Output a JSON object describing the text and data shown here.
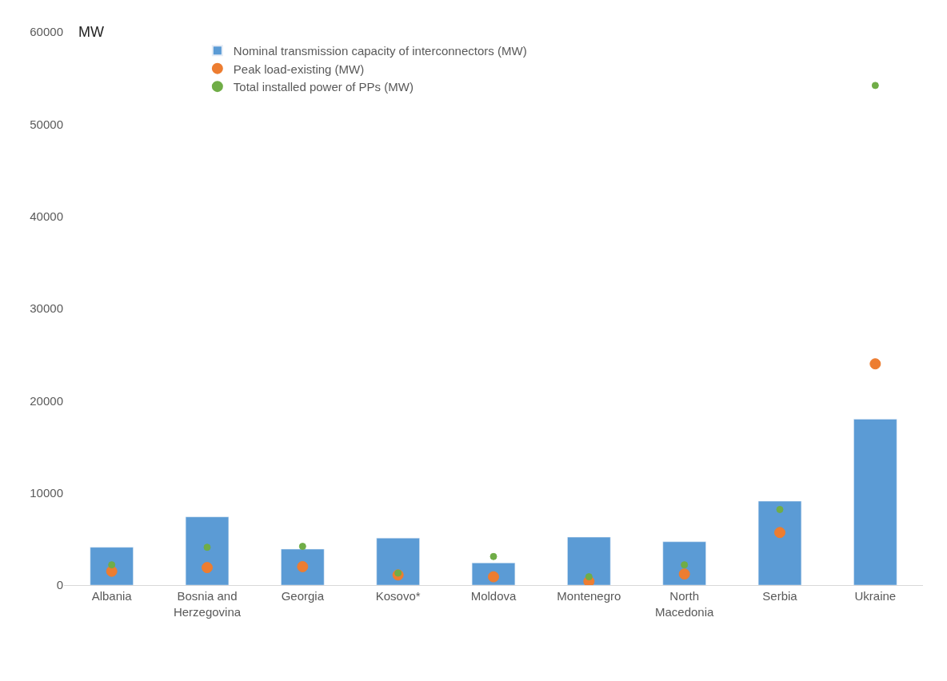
{
  "chart_data": {
    "type": "bar",
    "ylabel": "MW",
    "categories": [
      "Albania",
      "Bosnia and Herzegovina",
      "Georgia",
      "Kosovo*",
      "Moldova",
      "Montenegro",
      "North Macedonia",
      "Serbia",
      "Ukraine"
    ],
    "series": [
      {
        "name": "Nominal transmission capacity of interconnectors (MW)",
        "color": "#5b9bd5",
        "values": [
          4100,
          7400,
          3900,
          5100,
          2400,
          5200,
          4700,
          9100,
          18000
        ]
      },
      {
        "name": "Peak load-existing (MW)",
        "type": "scatter",
        "color": "#ed7d31",
        "values": [
          1500,
          1900,
          2000,
          1100,
          900,
          400,
          1200,
          5700,
          24000
        ]
      },
      {
        "name": "Total installed power of PPs (MW)",
        "type": "scatter",
        "color": "#70ad47",
        "values": [
          2200,
          4100,
          4200,
          1300,
          3100,
          900,
          2200,
          8200,
          54200
        ]
      }
    ],
    "ylim": [
      0,
      60000
    ],
    "yticks": [
      0,
      10000,
      20000,
      30000,
      40000,
      50000,
      60000
    ],
    "legend": "top left",
    "marker": "circle"
  }
}
